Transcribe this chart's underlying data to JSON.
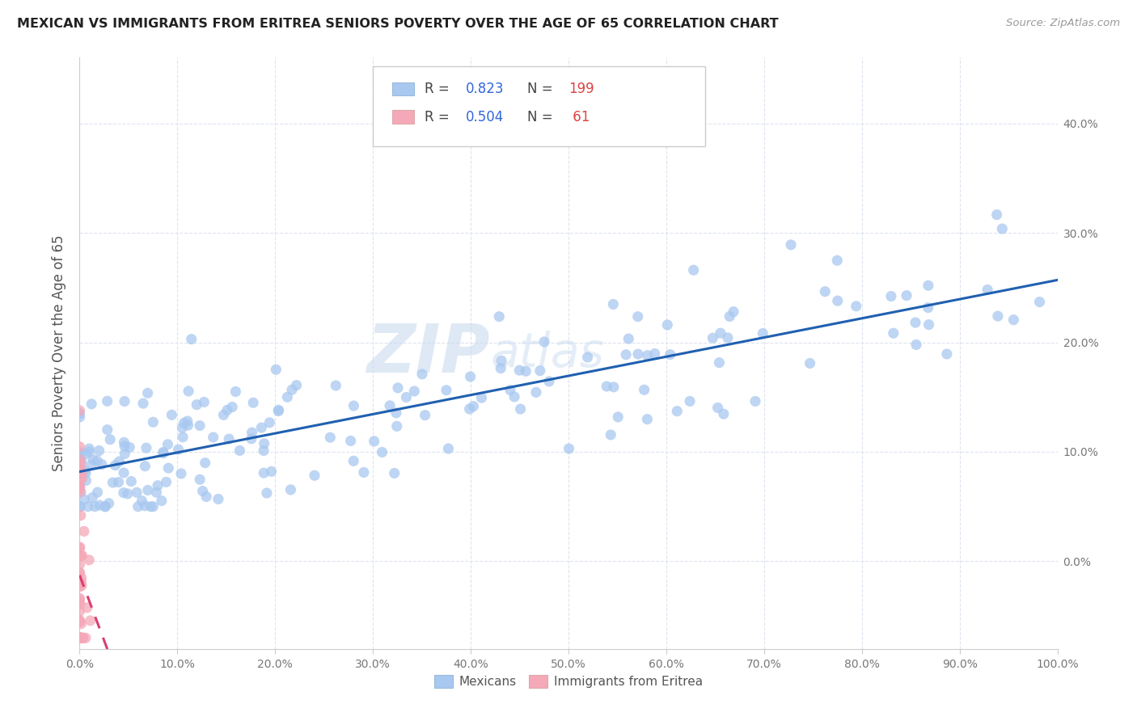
{
  "title": "MEXICAN VS IMMIGRANTS FROM ERITREA SENIORS POVERTY OVER THE AGE OF 65 CORRELATION CHART",
  "source": "Source: ZipAtlas.com",
  "ylabel": "Seniors Poverty Over the Age of 65",
  "xlim": [
    0.0,
    1.0
  ],
  "ylim": [
    -0.08,
    0.46
  ],
  "mexican_R": 0.823,
  "mexican_N": 199,
  "eritrea_R": 0.504,
  "eritrea_N": 61,
  "mexican_color": "#a8c8f0",
  "eritrea_color": "#f4a8b8",
  "mexican_line_color": "#2060b0",
  "eritrea_line_color": "#d84070",
  "watermark_zip": "ZIP",
  "watermark_atlas": "atlas",
  "legend_blue_label": "Mexicans",
  "legend_pink_label": "Immigrants from Eritrea",
  "yticks": [
    0.0,
    0.1,
    0.2,
    0.3,
    0.4
  ],
  "xticks": [
    0.0,
    0.1,
    0.2,
    0.3,
    0.4,
    0.5,
    0.6,
    0.7,
    0.8,
    0.9,
    1.0
  ],
  "grid_color": "#dde4ee",
  "tick_color": "#777777",
  "title_color": "#222222",
  "source_color": "#999999"
}
